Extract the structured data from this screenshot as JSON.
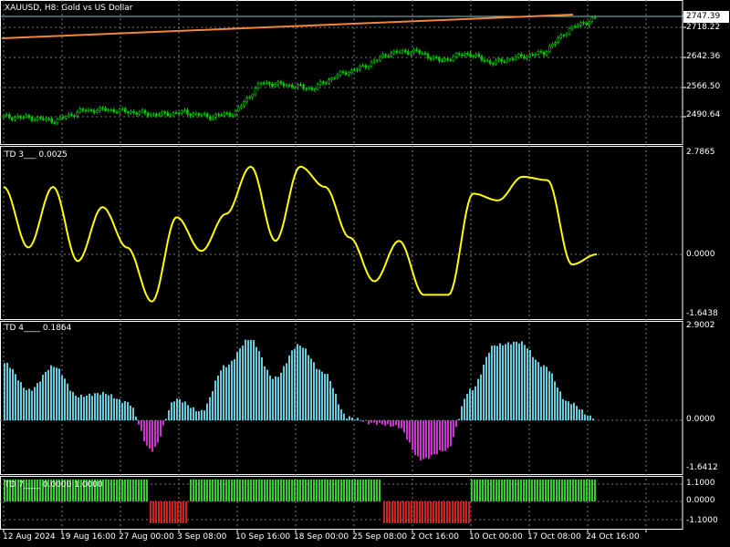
{
  "chart": {
    "symbol_title": "XAUUSD, H8:  Gold vs US Dollar",
    "price_current": "2747.39",
    "price_axis": [
      "2718.22",
      "2642.36",
      "2566.50",
      "2490.64"
    ],
    "colors": {
      "background": "#000000",
      "grid": "#FFFFFF",
      "candles": "#00C800",
      "trendline": "#F2843C",
      "price_line": "#7FC8C8",
      "td3_line": "#FFFF00",
      "td4_positive": "#66CCDD",
      "td4_negative": "#CC33CC",
      "td7_up": "#33CC33",
      "td7_down": "#CC2222"
    }
  },
  "indicators": {
    "td3": {
      "label": "TD 3___ 0.0025",
      "axis": [
        "2.7865",
        "0.0000",
        "-1.6438"
      ]
    },
    "td4": {
      "label": "TD 4____ 0.1864",
      "axis": [
        "2.9002",
        "0.0000",
        "-1.6412"
      ]
    },
    "td7": {
      "label": "TD 7____ 0.0000 1.0000",
      "axis": [
        "1.1000",
        "0.0000",
        "-1.1000"
      ]
    }
  },
  "time_axis": [
    "12 Aug 2024",
    "19 Aug 16:00",
    "27 Aug 00:00",
    "3 Sep 08:00",
    "10 Sep 16:00",
    "18 Sep 00:00",
    "25 Sep 08:00",
    "2 Oct 16:00",
    "10 Oct 00:00",
    "17 Oct 08:00",
    "24 Oct 16:00"
  ],
  "chart_data": {
    "type": "line",
    "series": [
      {
        "name": "XAUUSD",
        "approx_close_path": [
          2500,
          2498,
          2490,
          2515,
          2518,
          2512,
          2505,
          2512,
          2500,
          2510,
          2585,
          2580,
          2570,
          2605,
          2625,
          2660,
          2665,
          2640,
          2660,
          2635,
          2650,
          2660,
          2720,
          2747
        ]
      },
      {
        "name": "TD 3",
        "values": [
          2.0,
          0.2,
          2.0,
          -0.2,
          1.4,
          0.2,
          -1.4,
          1.1,
          0.1,
          1.2,
          2.6,
          0.4,
          2.6,
          2.0,
          0.5,
          -0.8,
          0.4,
          -1.2,
          -1.2,
          1.8,
          1.6,
          2.3,
          2.2,
          -0.3,
          0.0
        ]
      },
      {
        "name": "TD 4",
        "values": [
          1.9,
          1.0,
          1.8,
          0.8,
          0.9,
          0.6,
          -1.0,
          0.7,
          0.3,
          1.8,
          2.7,
          1.4,
          2.5,
          1.6,
          0.1,
          -0.1,
          -0.2,
          -1.3,
          -1.0,
          1.0,
          2.5,
          2.6,
          1.8,
          0.6,
          0.1
        ]
      },
      {
        "name": "TD 7",
        "values": [
          1,
          1,
          1,
          1,
          1,
          1,
          -1,
          1,
          1,
          1,
          1,
          1,
          1,
          1,
          1,
          -1,
          -1,
          -1,
          -1,
          1,
          1,
          1,
          1,
          1,
          1
        ]
      }
    ]
  }
}
